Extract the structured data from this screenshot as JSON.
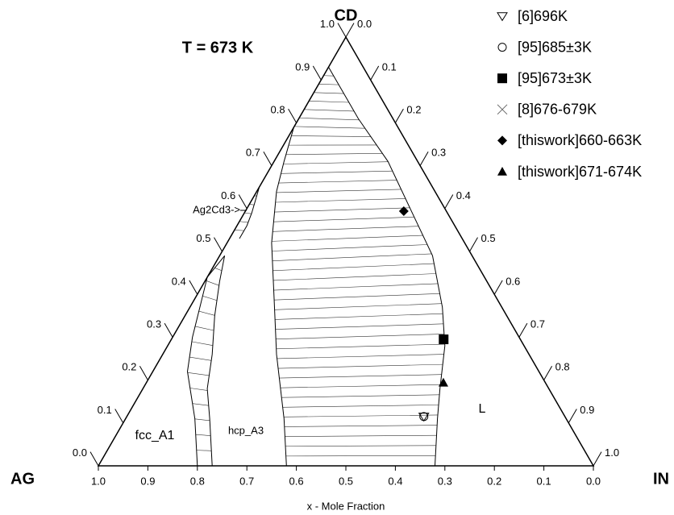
{
  "chart_data": {
    "type": "ternary",
    "title": "T = 673 K",
    "corners": {
      "bottom_left": "AG",
      "bottom_right": "IN",
      "top": "CD"
    },
    "xlabel": "x - Mole Fraction",
    "bottom_ticks": [
      {
        "value": 1,
        "label": "1.0"
      },
      0.9,
      0.8,
      0.7,
      0.6,
      0.5,
      0.4,
      0.3,
      0.2,
      0.1,
      {
        "value": 0,
        "label": "0.0"
      }
    ],
    "left_ticks": [
      {
        "value": 0,
        "label": "0.0"
      },
      0.1,
      0.2,
      0.3,
      0.4,
      0.5,
      0.6,
      0.7,
      0.8,
      0.9,
      {
        "value": 1,
        "label": "1.0"
      }
    ],
    "right_ticks": [
      {
        "value": 0,
        "label": "0.0"
      },
      0.1,
      0.2,
      0.3,
      0.4,
      0.5,
      0.6,
      0.7,
      0.8,
      0.9,
      {
        "value": 1,
        "label": "1.0"
      }
    ],
    "annotation": "Ag2Cd3->",
    "phase_labels": [
      "fcc_A1",
      "hcp_A3",
      "L"
    ],
    "regions": [
      {
        "left": {
          "x_in": [
            0.2,
            0.14,
            0.07,
            0.04,
            0.02,
            0.0,
            0.01
          ],
          "x_cd": [
            0,
            0.11,
            0.22,
            0.3,
            0.37,
            0.44,
            0.49
          ]
        },
        "right": {
          "x_in": [
            0.23,
            0.17,
            0.13,
            0.1,
            0.06,
            0.03,
            0.01
          ],
          "x_cd": [
            0,
            0.11,
            0.18,
            0.26,
            0.35,
            0.43,
            0.49
          ]
        }
      },
      {
        "left": {
          "x_in": [
            0,
            0,
            0,
            0
          ],
          "x_cd": [
            0.53,
            0.57,
            0.61,
            0.65
          ]
        },
        "right": {
          "x_in": [
            0.02,
            0.02,
            0.015,
            0
          ],
          "x_cd": [
            0.53,
            0.56,
            0.59,
            0.65
          ]
        }
      },
      {
        "left": {
          "x_in": [
            0.38,
            0.32,
            0.23,
            0.16,
            0.09,
            0.04,
            0.02,
            0.0,
            0.0,
            0.0
          ],
          "x_cd": [
            0,
            0.11,
            0.26,
            0.39,
            0.52,
            0.64,
            0.71,
            0.79,
            0.86,
            0.93
          ]
        },
        "right": {
          "x_in": [
            0.68,
            0.63,
            0.6,
            0.56,
            0.51,
            0.43,
            0.33,
            0.23,
            0.12,
            0.0
          ],
          "x_cd": [
            0,
            0.11,
            0.18,
            0.28,
            0.37,
            0.49,
            0.6,
            0.71,
            0.81,
            0.93
          ]
        }
      }
    ],
    "series": [
      {
        "name": "[6]696K",
        "marker": "triangle-down-open",
        "x_in": [
          0.6
        ],
        "x_cd": [
          0.115
        ]
      },
      {
        "name": "[95]685±3K",
        "marker": "circle-open",
        "x_in": [
          0.6
        ],
        "x_cd": [
          0.115
        ]
      },
      {
        "name": "[95]673±3K",
        "marker": "square",
        "x_in": [
          0.55
        ],
        "x_cd": [
          0.295
        ]
      },
      {
        "name": "[8]676-679K",
        "marker": "x",
        "x_in": [],
        "x_cd": []
      },
      {
        "name": "[thiswork]660-663K",
        "marker": "diamond",
        "x_in": [
          0.32
        ],
        "x_cd": [
          0.594
        ]
      },
      {
        "name": "[thiswork]671-674K",
        "marker": "triangle",
        "x_in": [
          0.6
        ],
        "x_cd": [
          0.194
        ]
      }
    ]
  }
}
